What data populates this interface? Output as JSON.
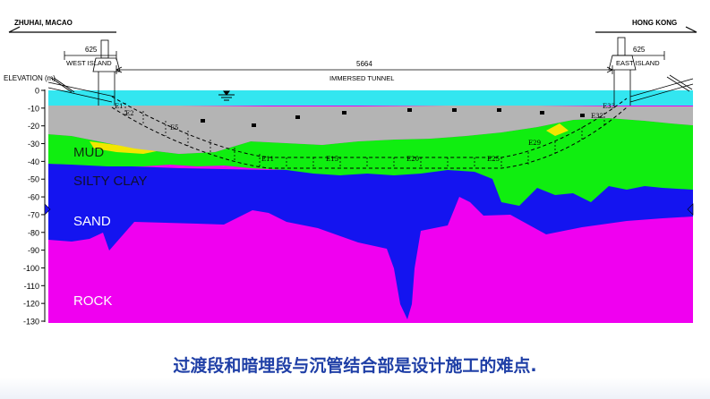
{
  "header": {
    "left_place": "ZHUHAI, MACAO",
    "right_place": "HONG KONG"
  },
  "dimensions": {
    "west_island_length": "625",
    "east_island_length": "625",
    "tunnel_length": "5664",
    "west_island_label": "WEST ISLAND",
    "east_island_label": "EAST ISLAND",
    "tunnel_label": "IMMERSED TUNNEL"
  },
  "axis": {
    "title": "ELEVATION (m)",
    "ticks": [
      0,
      -10,
      -20,
      -30,
      -40,
      -50,
      -60,
      -70,
      -80,
      -90,
      -100,
      -110,
      -120,
      -130
    ]
  },
  "segments": [
    "E1",
    "E2",
    "E5",
    "E11",
    "E15",
    "E20",
    "E25",
    "E29",
    "E32",
    "E33"
  ],
  "layers": {
    "mud": "MUD",
    "silty_clay": "SILTY CLAY",
    "sand": "SAND",
    "rock": "ROCK"
  },
  "colors": {
    "water": "#33e6f0",
    "seabed": "#b4b4b4",
    "mud": "#10ee10",
    "sand_layer": "#f2e600",
    "silty_clay": "#1414f0",
    "rock": "#f000f0",
    "caption": "#1f3fa6"
  },
  "caption": "过渡段和暗埋段与沉管结合部是设计施工的难点."
}
